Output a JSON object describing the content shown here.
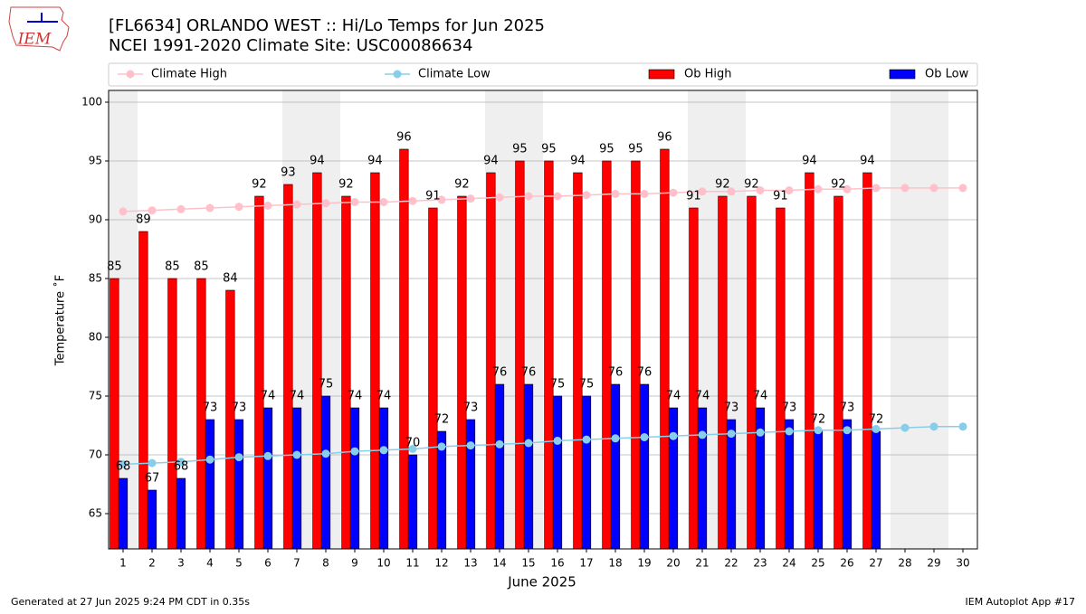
{
  "chart_data": {
    "type": "bar",
    "title": "[FL6634] ORLANDO WEST :: Hi/Lo Temps for Jun 2025",
    "subtitle": "NCEI 1991-2020 Climate Site: USC00086634",
    "logo_text": "IEM",
    "xlabel": "June 2025",
    "ylabel": "Temperature ˚F",
    "footer_left": "Generated at 27 Jun 2025 9:24 PM CDT in 0.35s",
    "footer_right": "IEM Autoplot App #17",
    "x": [
      1,
      2,
      3,
      4,
      5,
      6,
      7,
      8,
      9,
      10,
      11,
      12,
      13,
      14,
      15,
      16,
      17,
      18,
      19,
      20,
      21,
      22,
      23,
      24,
      25,
      26,
      27,
      28,
      29,
      30
    ],
    "xlim": [
      0.5,
      30.5
    ],
    "xticks": [
      1,
      2,
      3,
      4,
      5,
      6,
      7,
      8,
      9,
      10,
      11,
      12,
      13,
      14,
      15,
      16,
      17,
      18,
      19,
      20,
      21,
      22,
      23,
      24,
      25,
      26,
      27,
      28,
      29,
      30
    ],
    "ylim": [
      62,
      101
    ],
    "yticks": [
      65,
      70,
      75,
      80,
      85,
      90,
      95,
      100
    ],
    "grid": true,
    "legend": "top",
    "shaded_spans": [
      [
        0.5,
        1.5
      ],
      [
        6.5,
        8.5
      ],
      [
        13.5,
        15.5
      ],
      [
        20.5,
        22.5
      ],
      [
        27.5,
        29.5
      ]
    ],
    "series": [
      {
        "name": "Climate High",
        "type": "line",
        "color": "#ffc0cb",
        "values": [
          90.7,
          90.8,
          90.9,
          91.0,
          91.1,
          91.2,
          91.3,
          91.4,
          91.5,
          91.5,
          91.6,
          91.7,
          91.8,
          91.9,
          92.0,
          92.0,
          92.1,
          92.2,
          92.2,
          92.3,
          92.4,
          92.4,
          92.5,
          92.5,
          92.6,
          92.6,
          92.7,
          92.7,
          92.7,
          92.7
        ]
      },
      {
        "name": "Climate Low",
        "type": "line",
        "color": "#87ceeb",
        "values": [
          69.2,
          69.3,
          69.4,
          69.6,
          69.8,
          69.9,
          70.0,
          70.1,
          70.3,
          70.4,
          70.5,
          70.7,
          70.8,
          70.9,
          71.0,
          71.2,
          71.3,
          71.4,
          71.5,
          71.6,
          71.7,
          71.8,
          71.9,
          72.0,
          72.1,
          72.1,
          72.2,
          72.3,
          72.4,
          72.4
        ]
      },
      {
        "name": "Ob High",
        "type": "bar",
        "color": "#ff0000",
        "values": [
          85,
          89,
          85,
          85,
          84,
          92,
          93,
          94,
          92,
          94,
          96,
          91,
          92,
          94,
          95,
          95,
          94,
          95,
          95,
          96,
          91,
          92,
          92,
          91,
          94,
          92,
          94,
          null,
          null,
          null
        ]
      },
      {
        "name": "Ob Low",
        "type": "bar",
        "color": "#0000ff",
        "values": [
          68,
          67,
          68,
          73,
          73,
          74,
          74,
          75,
          74,
          74,
          70,
          72,
          73,
          76,
          76,
          75,
          75,
          76,
          76,
          74,
          74,
          73,
          74,
          73,
          72,
          73,
          72,
          null,
          null,
          null
        ]
      }
    ]
  }
}
